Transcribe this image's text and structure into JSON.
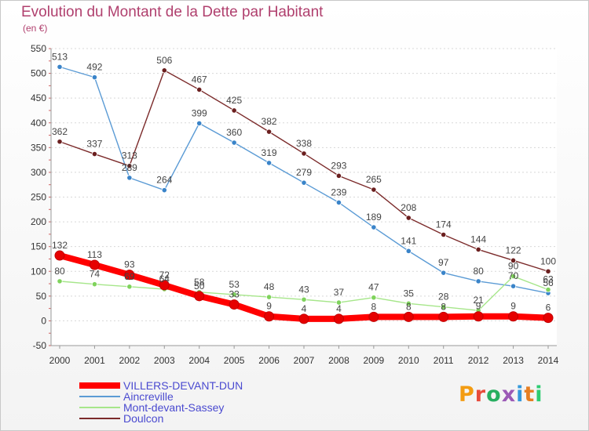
{
  "header": {
    "title": "Evolution du Montant de la Dette par Habitant",
    "subtitle": "(en €)"
  },
  "logo": {
    "text": "Proxiti",
    "colors": [
      "#f39c12",
      "#e74c3c",
      "#27ae60",
      "#9b59b6",
      "#3498db",
      "#e67e22",
      "#2ecc71"
    ]
  },
  "chart_data": {
    "type": "line",
    "title": "Evolution du Montant de la Dette par Habitant",
    "subtitle": "(en €)",
    "xlabel": "",
    "ylabel": "",
    "x": [
      "2000",
      "2001",
      "2002",
      "2003",
      "2004",
      "2005",
      "2006",
      "2007",
      "2008",
      "2009",
      "2010",
      "2011",
      "2012",
      "2013",
      "2014"
    ],
    "ylim": [
      -50,
      550
    ],
    "yticks": [
      -50,
      0,
      50,
      100,
      150,
      200,
      250,
      300,
      350,
      400,
      450,
      500,
      550
    ],
    "grid": true,
    "legend": "bottom-left",
    "series": [
      {
        "name": "VILLERS-DEVANT-DUN",
        "color": "#ff0000",
        "marker": "#e60000",
        "values": [
          132,
          113,
          93,
          72,
          50,
          33,
          9,
          4,
          4,
          8,
          8,
          8,
          9,
          9,
          6
        ]
      },
      {
        "name": "Aincreville",
        "color": "#5b9bd5",
        "marker": "#3a84c9",
        "values": [
          513,
          492,
          289,
          264,
          399,
          360,
          319,
          279,
          239,
          189,
          141,
          97,
          80,
          70,
          56
        ]
      },
      {
        "name": "Mont-devant-Sassey",
        "color": "#a6e68a",
        "marker": "#7fd35c",
        "values": [
          80,
          74,
          69,
          64,
          58,
          53,
          48,
          43,
          37,
          47,
          35,
          28,
          21,
          90,
          63
        ]
      },
      {
        "name": "Doulcon",
        "color": "#7b2a2a",
        "marker": "#6b1f1f",
        "values": [
          362,
          337,
          313,
          506,
          467,
          425,
          382,
          338,
          293,
          265,
          208,
          174,
          144,
          122,
          100
        ]
      }
    ]
  }
}
